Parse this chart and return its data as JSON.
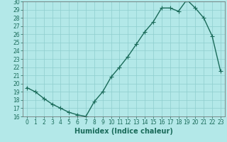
{
  "x": [
    0,
    1,
    2,
    3,
    4,
    5,
    6,
    7,
    8,
    9,
    10,
    11,
    12,
    13,
    14,
    15,
    16,
    17,
    18,
    19,
    20,
    21,
    22,
    23
  ],
  "y": [
    19.5,
    19.0,
    18.2,
    17.5,
    17.0,
    16.5,
    16.2,
    16.0,
    17.8,
    19.0,
    20.8,
    22.0,
    23.3,
    24.8,
    26.3,
    27.5,
    29.2,
    29.2,
    28.8,
    30.2,
    29.2,
    28.0,
    25.8,
    21.5
  ],
  "ylim": [
    16,
    30
  ],
  "yticks": [
    16,
    17,
    18,
    19,
    20,
    21,
    22,
    23,
    24,
    25,
    26,
    27,
    28,
    29,
    30
  ],
  "xticks": [
    0,
    1,
    2,
    3,
    4,
    5,
    6,
    7,
    8,
    9,
    10,
    11,
    12,
    13,
    14,
    15,
    16,
    17,
    18,
    19,
    20,
    21,
    22,
    23
  ],
  "xlabel": "Humidex (Indice chaleur)",
  "line_color": "#1a6b5a",
  "marker": "+",
  "bg_color": "#b3e8e8",
  "grid_color": "#8ecece",
  "marker_size": 4,
  "line_width": 1.0,
  "xlabel_fontsize": 7,
  "tick_fontsize": 5.5
}
